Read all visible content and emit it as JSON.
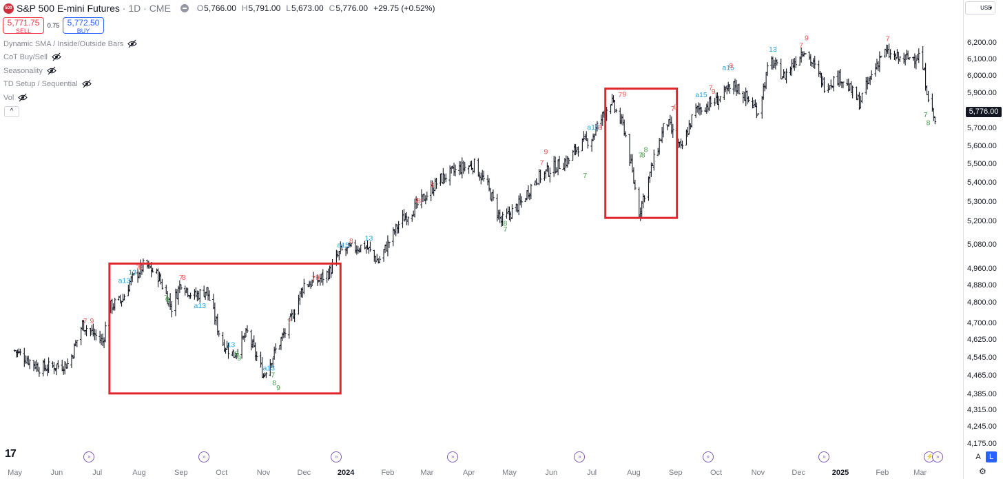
{
  "header": {
    "logo_text": "500",
    "symbol": "S&P 500 E-mini Futures",
    "meta": " · 1D · CME",
    "ohlc": [
      {
        "k": "O",
        "v": "5,766.00"
      },
      {
        "k": "H",
        "v": "5,791.00"
      },
      {
        "k": "L",
        "v": "5,673.00"
      },
      {
        "k": "C",
        "v": "5,776.00"
      }
    ],
    "change": "+29.75 (+0.52%)"
  },
  "trade": {
    "sell_price": "5,771.75",
    "sell_label": "SELL",
    "spread": "0.75",
    "buy_price": "5,772.50",
    "buy_label": "BUY"
  },
  "indicators": [
    {
      "name": "Dynamic SMA / Inside/Outside Bars"
    },
    {
      "name": "CoT Buy/Sell"
    },
    {
      "name": "Seasonality"
    },
    {
      "name": "TD Setup / Sequential"
    },
    {
      "name": "Vol"
    }
  ],
  "collapse_icon": "^",
  "currency": "USD",
  "currency_arrow": "▾",
  "last_price": "5,776.00",
  "buttons": {
    "auto": "A",
    "log": "L",
    "tv_logo": "17"
  },
  "colors": {
    "up": "#131722",
    "buy": "#2962ff",
    "sell": "#f23645",
    "teal": "#26a0da",
    "green": "#43a047",
    "box": "#e0262d"
  },
  "chart_data": {
    "type": "ohlc-bar",
    "scale": "log",
    "ylim": [
      4150,
      6300
    ],
    "y_ticks": [
      "6,200.00",
      "6,100.00",
      "6,000.00",
      "5,900.00",
      "5,800.00",
      "5,700.00",
      "5,600.00",
      "5,500.00",
      "5,400.00",
      "5,300.00",
      "5,200.00",
      "5,080.00",
      "4,960.00",
      "4,880.00",
      "4,800.00",
      "4,700.00",
      "4,625.00",
      "4,545.00",
      "4,465.00",
      "4,385.00",
      "4,315.00",
      "4,245.00",
      "4,175.00"
    ],
    "x_ticks": [
      "May",
      "Jun",
      "Jul",
      "Aug",
      "Sep",
      "Oct",
      "Nov",
      "Dec",
      "2024",
      "Feb",
      "Mar",
      "Apr",
      "May",
      "Jun",
      "Jul",
      "Aug",
      "Sep",
      "Oct",
      "Nov",
      "Dec",
      "2025",
      "Feb",
      "Mar"
    ],
    "year_ticks": [
      "2024",
      "2025"
    ],
    "price_path": [
      [
        "2023-05-01",
        4580
      ],
      [
        "2023-05-20",
        4500
      ],
      [
        "2023-06-10",
        4520
      ],
      [
        "2023-06-20",
        4700
      ],
      [
        "2023-07-05",
        4620
      ],
      [
        "2023-07-10",
        4780
      ],
      [
        "2023-07-20",
        4820
      ],
      [
        "2023-07-25",
        4900
      ],
      [
        "2023-08-05",
        4985
      ],
      [
        "2023-08-15",
        4930
      ],
      [
        "2023-08-25",
        4780
      ],
      [
        "2023-09-01",
        4900
      ],
      [
        "2023-09-10",
        4830
      ],
      [
        "2023-09-20",
        4860
      ],
      [
        "2023-10-01",
        4620
      ],
      [
        "2023-10-10",
        4560
      ],
      [
        "2023-10-20",
        4660
      ],
      [
        "2023-11-01",
        4470
      ],
      [
        "2023-11-10",
        4580
      ],
      [
        "2023-11-20",
        4700
      ],
      [
        "2023-12-01",
        4890
      ],
      [
        "2023-12-10",
        4900
      ],
      [
        "2023-12-20",
        4950
      ],
      [
        "2023-12-28",
        5050
      ],
      [
        "2024-01-15",
        5080
      ],
      [
        "2024-01-25",
        5000
      ],
      [
        "2024-02-10",
        5200
      ],
      [
        "2024-02-25",
        5300
      ],
      [
        "2024-03-10",
        5420
      ],
      [
        "2024-03-25",
        5480
      ],
      [
        "2024-04-05",
        5500
      ],
      [
        "2024-04-15",
        5380
      ],
      [
        "2024-04-25",
        5200
      ],
      [
        "2024-05-10",
        5300
      ],
      [
        "2024-05-20",
        5420
      ],
      [
        "2024-06-01",
        5480
      ],
      [
        "2024-06-15",
        5530
      ],
      [
        "2024-06-20",
        5600
      ],
      [
        "2024-07-01",
        5650
      ],
      [
        "2024-07-15",
        5860
      ],
      [
        "2024-07-25",
        5700
      ],
      [
        "2024-08-05",
        5250
      ],
      [
        "2024-08-15",
        5500
      ],
      [
        "2024-08-25",
        5750
      ],
      [
        "2024-09-05",
        5580
      ],
      [
        "2024-09-15",
        5800
      ],
      [
        "2024-10-01",
        5860
      ],
      [
        "2024-10-15",
        5950
      ],
      [
        "2024-11-01",
        5800
      ],
      [
        "2024-11-10",
        6100
      ],
      [
        "2024-11-20",
        6000
      ],
      [
        "2024-12-05",
        6170
      ],
      [
        "2024-12-20",
        5950
      ],
      [
        "2025-01-01",
        6000
      ],
      [
        "2025-01-15",
        5850
      ],
      [
        "2025-02-01",
        6150
      ],
      [
        "2025-02-15",
        6100
      ],
      [
        "2025-03-01",
        6130
      ],
      [
        "2025-03-08",
        5850
      ],
      [
        "2025-03-12",
        5740
      ]
    ],
    "td_labels": [
      {
        "t": "7",
        "c": "red",
        "d": "2023-06-22",
        "v": 4705
      },
      {
        "t": "9",
        "c": "red",
        "d": "2023-06-27",
        "v": 4705
      },
      {
        "t": "a13",
        "c": "teal",
        "d": "2023-07-21",
        "v": 4895
      },
      {
        "t": "13",
        "c": "teal",
        "d": "2023-07-27",
        "v": 4935
      },
      {
        "t": "7",
        "c": "red",
        "d": "2023-07-31",
        "v": 4960
      },
      {
        "t": "8",
        "c": "red",
        "d": "2023-08-02",
        "v": 4960
      },
      {
        "t": "7",
        "c": "red",
        "d": "2023-09-01",
        "v": 4910
      },
      {
        "t": "8",
        "c": "red",
        "d": "2023-09-03",
        "v": 4910
      },
      {
        "t": "7",
        "c": "green",
        "d": "2023-08-21",
        "v": 4815
      },
      {
        "t": "8",
        "c": "green",
        "d": "2023-08-22",
        "v": 4805
      },
      {
        "t": "a13",
        "c": "teal",
        "d": "2023-09-15",
        "v": 4775
      },
      {
        "t": "13",
        "c": "teal",
        "d": "2023-10-08",
        "v": 4595
      },
      {
        "t": "8",
        "c": "green",
        "d": "2023-10-12",
        "v": 4555
      },
      {
        "t": "9",
        "c": "green",
        "d": "2023-10-14",
        "v": 4535
      },
      {
        "t": "a13",
        "c": "teal",
        "d": "2023-11-05",
        "v": 4490
      },
      {
        "t": "7",
        "c": "green",
        "d": "2023-11-08",
        "v": 4460
      },
      {
        "t": "8",
        "c": "green",
        "d": "2023-11-09",
        "v": 4425
      },
      {
        "t": "9",
        "c": "green",
        "d": "2023-11-12",
        "v": 4405
      },
      {
        "t": "7",
        "c": "red",
        "d": "2023-11-20",
        "v": 4700
      },
      {
        "t": "7",
        "c": "red",
        "d": "2023-12-08",
        "v": 4905
      },
      {
        "t": "9",
        "c": "red",
        "d": "2023-12-11",
        "v": 4910
      },
      {
        "t": "a15",
        "c": "teal",
        "d": "2023-12-30",
        "v": 5070
      },
      {
        "t": "8",
        "c": "red",
        "d": "2024-01-05",
        "v": 5090
      },
      {
        "t": "13",
        "c": "teal",
        "d": "2024-01-18",
        "v": 5105
      },
      {
        "t": "7",
        "c": "red",
        "d": "2024-02-22",
        "v": 5295
      },
      {
        "t": "8",
        "c": "red",
        "d": "2024-02-24",
        "v": 5295
      },
      {
        "t": "8",
        "c": "red",
        "d": "2024-03-05",
        "v": 5380
      },
      {
        "t": "8",
        "c": "green",
        "d": "2024-04-28",
        "v": 5180
      },
      {
        "t": "7",
        "c": "green",
        "d": "2024-04-28",
        "v": 5150
      },
      {
        "t": "7",
        "c": "red",
        "d": "2024-05-25",
        "v": 5500
      },
      {
        "t": "9",
        "c": "red",
        "d": "2024-05-28",
        "v": 5560
      },
      {
        "t": "7",
        "c": "green",
        "d": "2024-06-26",
        "v": 5430
      },
      {
        "t": "a15",
        "c": "teal",
        "d": "2024-07-02",
        "v": 5695
      },
      {
        "t": "8",
        "c": "red",
        "d": "2024-07-07",
        "v": 5695
      },
      {
        "t": "7",
        "c": "red",
        "d": "2024-07-22",
        "v": 5880
      },
      {
        "t": "9",
        "c": "red",
        "d": "2024-07-25",
        "v": 5885
      },
      {
        "t": "8",
        "c": "green",
        "d": "2024-08-10",
        "v": 5570
      },
      {
        "t": "7",
        "c": "green",
        "d": "2024-08-06",
        "v": 5540
      },
      {
        "t": "8",
        "c": "green",
        "d": "2024-08-08",
        "v": 5540
      },
      {
        "t": "7",
        "c": "red",
        "d": "2024-08-30",
        "v": 5800
      },
      {
        "t": "9",
        "c": "red",
        "d": "2024-09-01",
        "v": 5810
      },
      {
        "t": "a15",
        "c": "teal",
        "d": "2024-09-20",
        "v": 5880
      },
      {
        "t": "7",
        "c": "red",
        "d": "2024-09-27",
        "v": 5920
      },
      {
        "t": "9",
        "c": "red",
        "d": "2024-09-29",
        "v": 5900
      },
      {
        "t": "a15",
        "c": "teal",
        "d": "2024-10-10",
        "v": 6040
      },
      {
        "t": "8",
        "c": "red",
        "d": "2024-10-12",
        "v": 6050
      },
      {
        "t": "13",
        "c": "teal",
        "d": "2024-11-12",
        "v": 6150
      },
      {
        "t": "7",
        "c": "red",
        "d": "2024-12-03",
        "v": 6175
      },
      {
        "t": "9",
        "c": "red",
        "d": "2024-12-07",
        "v": 6220
      },
      {
        "t": "7",
        "c": "red",
        "d": "2025-02-05",
        "v": 6215
      },
      {
        "t": "7",
        "c": "green",
        "d": "2025-03-05",
        "v": 5765
      },
      {
        "t": "8",
        "c": "green",
        "d": "2025-03-07",
        "v": 5720
      }
    ],
    "highlight_boxes": [
      {
        "from": "2023-07-10",
        "to": "2023-12-28",
        "top": 4990,
        "bottom": 4390
      },
      {
        "from": "2024-07-11",
        "to": "2024-09-02",
        "top": 5930,
        "bottom": 5220
      }
    ],
    "events": [
      {
        "d": "2023-06-25",
        "icon": "earnings-icon"
      },
      {
        "d": "2023-09-18",
        "icon": "earnings-icon"
      },
      {
        "d": "2023-12-25",
        "icon": "earnings-icon"
      },
      {
        "d": "2024-03-20",
        "icon": "earnings-icon"
      },
      {
        "d": "2024-06-22",
        "icon": "earnings-icon"
      },
      {
        "d": "2024-09-25",
        "icon": "earnings-icon"
      },
      {
        "d": "2024-12-20",
        "icon": "earnings-icon"
      },
      {
        "d": "2025-03-08",
        "icon": "dividend-icon"
      },
      {
        "d": "2025-03-14",
        "icon": "earnings-icon"
      }
    ]
  }
}
